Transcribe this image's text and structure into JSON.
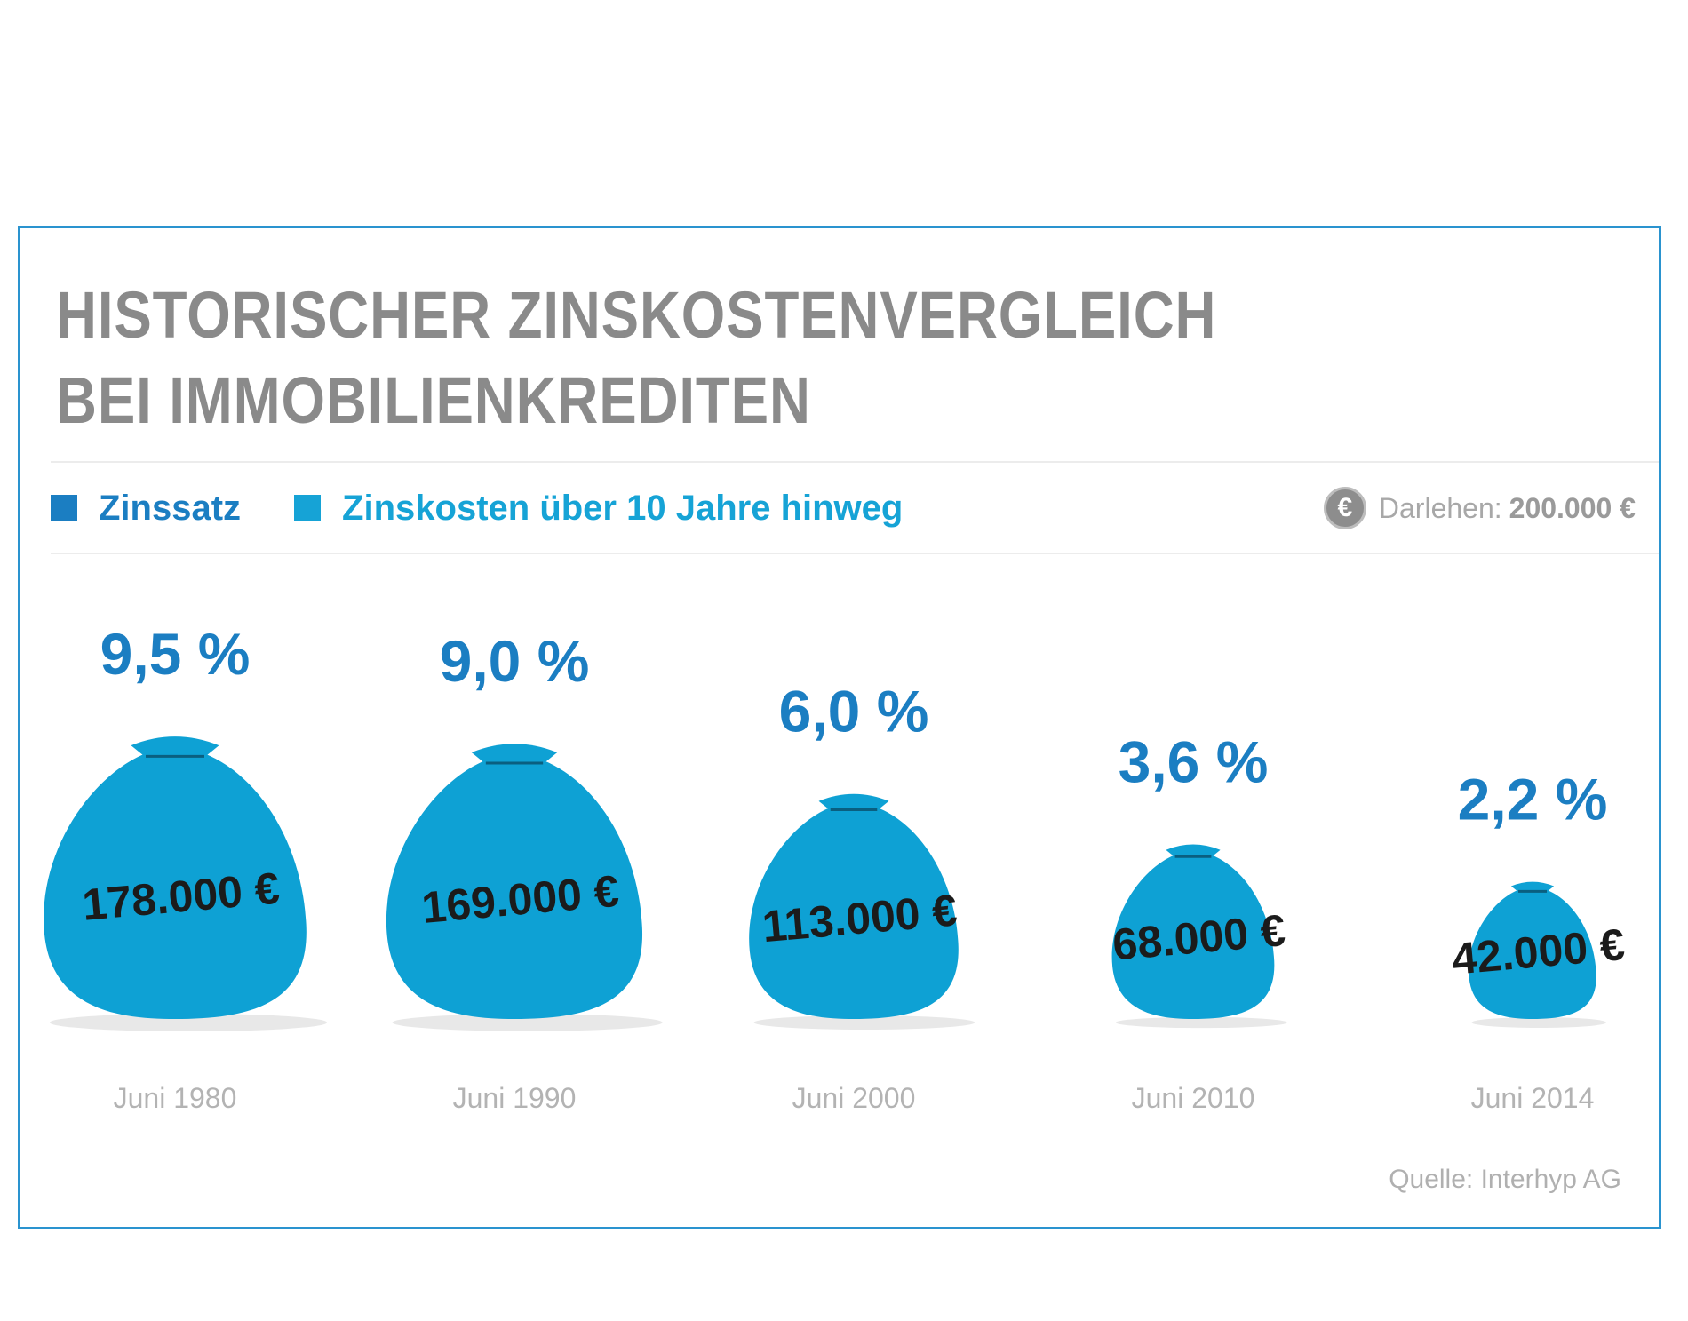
{
  "title_lines": [
    "HISTORISCHER ZINSKOSTENVERGLEICH",
    "BEI IMMOBILIENKREDITEN"
  ],
  "legend": [
    {
      "label": "Zinssatz",
      "color": "#1b7ec2"
    },
    {
      "label": "Zinskosten über 10 Jahre hinweg",
      "color": "#16a3d6"
    }
  ],
  "loan": {
    "icon": "euro-icon",
    "label": "Darlehen:",
    "value": "200.000 €"
  },
  "source": "Quelle: Interhyp AG",
  "colors": {
    "frame": "#2a93cf",
    "rate": "#1b7ec2",
    "bag": "#0ea1d4",
    "title": "#8a8a8a"
  },
  "chart_data": {
    "type": "bar",
    "title": "HISTORISCHER ZINSKOSTENVERGLEICH BEI IMMOBILIENKREDITEN",
    "categories": [
      "Juni 1980",
      "Juni 1990",
      "Juni 2000",
      "Juni 2010",
      "Juni 2014"
    ],
    "series": [
      {
        "name": "Zinssatz",
        "values": [
          9.5,
          9.0,
          6.0,
          3.6,
          2.2
        ],
        "labels": [
          "9,5 %",
          "9,0 %",
          "6,0 %",
          "3,6 %",
          "2,2 %"
        ]
      },
      {
        "name": "Zinskosten über 10 Jahre hinweg",
        "values": [
          178000,
          169000,
          113000,
          68000,
          42000
        ],
        "labels": [
          "178.000 €",
          "169.000 €",
          "113.000 €",
          "68.000 €",
          "42.000 €"
        ]
      }
    ],
    "legend": "top-left",
    "grid": false
  }
}
